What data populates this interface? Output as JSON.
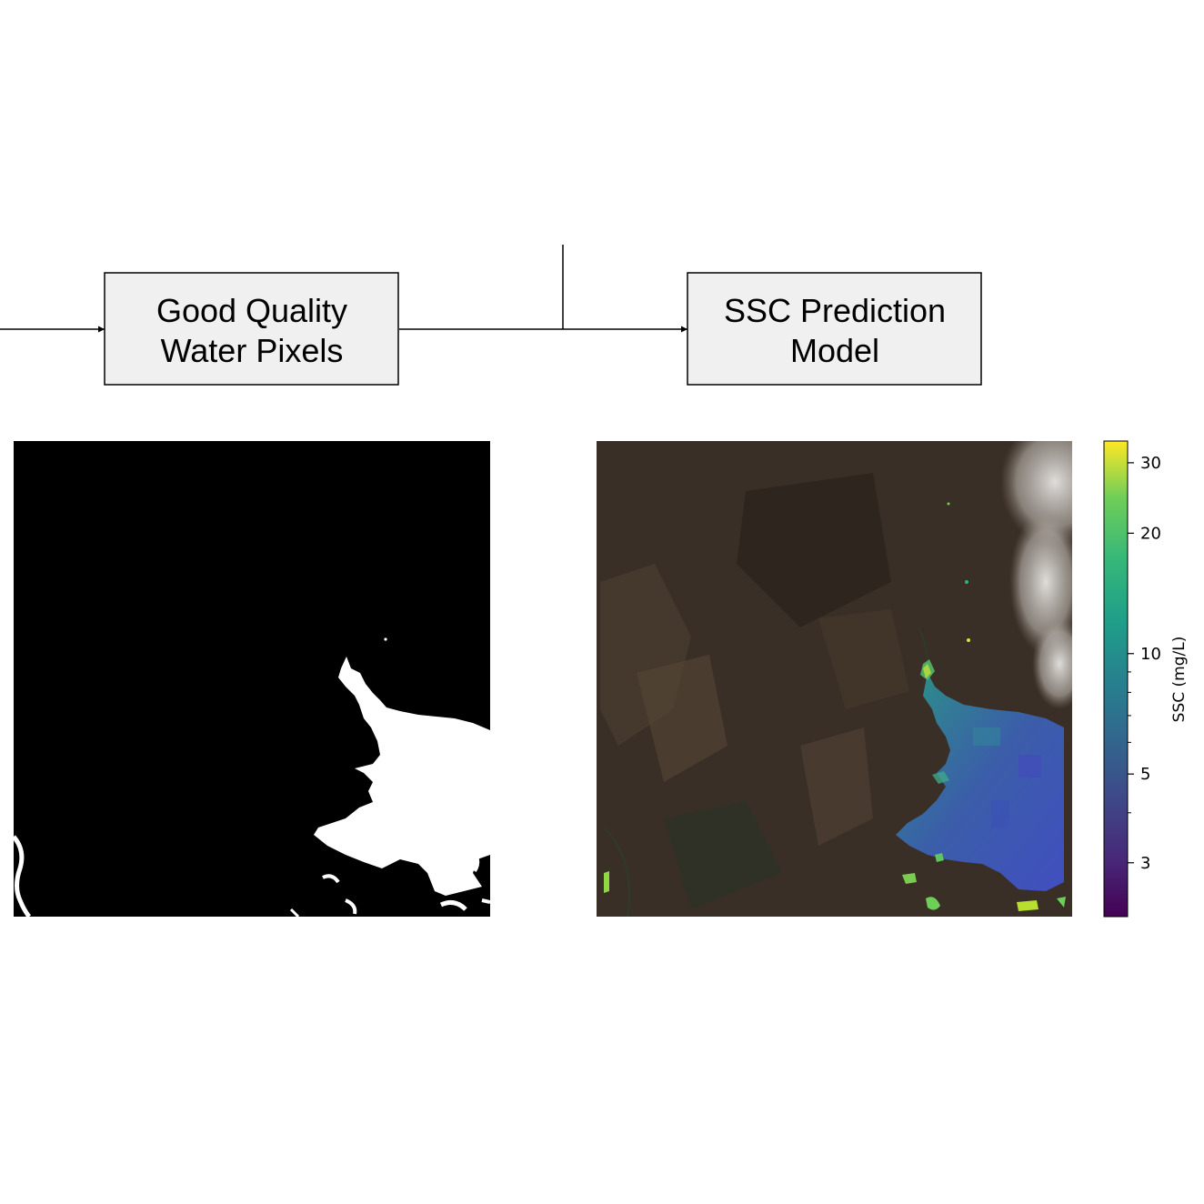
{
  "flow": {
    "box1_line1": "Good Quality",
    "box1_line2": "Water Pixels",
    "box2_line1": "SSC Prediction",
    "box2_line2": "Model"
  },
  "colorbar": {
    "label": "SSC (mg/L)",
    "scale": "log",
    "range": [
      2.2,
      34
    ],
    "colormap": "viridis",
    "ticks": [
      {
        "value": 3,
        "label": "3"
      },
      {
        "value": 5,
        "label": "5"
      },
      {
        "value": 10,
        "label": "10"
      },
      {
        "value": 20,
        "label": "20"
      },
      {
        "value": 30,
        "label": "30"
      }
    ],
    "minor_ticks": [
      4,
      6,
      7,
      8,
      9
    ]
  },
  "colors": {
    "box_fill": "#f0f0f0",
    "mask_background": "#000000",
    "mask_water": "#ffffff",
    "satellite_land": "#3a2f26"
  }
}
